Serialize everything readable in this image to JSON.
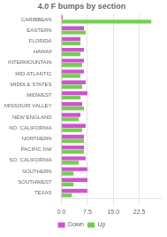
{
  "chart_data": {
    "type": "bar",
    "title": "4.0 F bumps by section",
    "orientation": "horizontal",
    "categories": [
      "CARIBBEAN",
      "EASTERN",
      "FLORIDA",
      "HAWAII",
      "INTERMOUNTAIN",
      "MID ATLANTIC",
      "MIDDLE STATES",
      "MIDWEST",
      "MISSOURI VALLEY",
      "NEW ENGLAND",
      "NO. CALIFORNIA",
      "NORTHERN",
      "PACIFIC NW",
      "SO. CALIFORNIA",
      "SOUTHERN",
      "SOUTHWEST",
      "TEXAS"
    ],
    "series": [
      {
        "name": "Down",
        "color": "#cc55cc",
        "values": [
          0.4,
          6.5,
          5.5,
          6.5,
          6.5,
          6.5,
          7.0,
          7.5,
          6.0,
          5.5,
          7.0,
          6.5,
          6.5,
          7.0,
          7.5,
          7.5,
          7.5
        ]
      },
      {
        "name": "Up",
        "color": "#77cc55",
        "values": [
          26.0,
          7.0,
          5.5,
          5.5,
          6.0,
          5.5,
          6.0,
          5.5,
          6.5,
          5.0,
          6.0,
          6.5,
          6.5,
          5.0,
          3.5,
          3.5,
          3.0
        ]
      }
    ],
    "xlim": [
      0,
      29
    ],
    "xticks": [
      {
        "value": 0,
        "label": "0.0"
      },
      7.5,
      {
        "value": 15,
        "label": "15.0"
      },
      22.5
    ],
    "grid": true,
    "legend": "bottom"
  }
}
